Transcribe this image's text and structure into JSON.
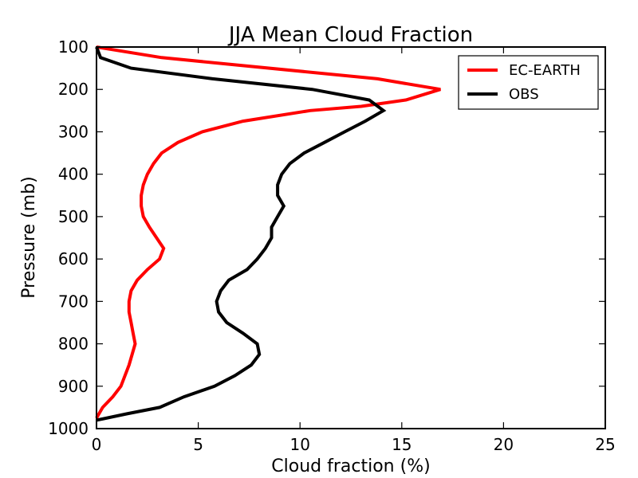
{
  "chart_data": {
    "type": "line",
    "title": "JJA Mean Cloud Fraction",
    "xlabel": "Cloud fraction (%)",
    "ylabel": "Pressure (mb)",
    "xlim": [
      0,
      25
    ],
    "ylim": [
      1000,
      100
    ],
    "y_inverted": true,
    "xticks": [
      0,
      5,
      10,
      15,
      20,
      25
    ],
    "yticks": [
      100,
      200,
      300,
      400,
      500,
      600,
      700,
      800,
      900,
      1000
    ],
    "grid": false,
    "legend_position": "top-right",
    "series": [
      {
        "name": "EC-EARTH",
        "color": "#ff0000",
        "points": [
          [
            0.0,
            100
          ],
          [
            3.2,
            125
          ],
          [
            13.8,
            175
          ],
          [
            16.9,
            200
          ],
          [
            15.2,
            225
          ],
          [
            13.0,
            240
          ],
          [
            10.5,
            250
          ],
          [
            7.2,
            275
          ],
          [
            5.2,
            300
          ],
          [
            4.0,
            325
          ],
          [
            3.2,
            350
          ],
          [
            2.8,
            375
          ],
          [
            2.5,
            400
          ],
          [
            2.3,
            425
          ],
          [
            2.2,
            450
          ],
          [
            2.2,
            475
          ],
          [
            2.3,
            500
          ],
          [
            2.6,
            525
          ],
          [
            3.3,
            575
          ],
          [
            3.1,
            600
          ],
          [
            2.5,
            625
          ],
          [
            2.0,
            650
          ],
          [
            1.7,
            675
          ],
          [
            1.6,
            700
          ],
          [
            1.6,
            725
          ],
          [
            1.7,
            750
          ],
          [
            1.8,
            775
          ],
          [
            1.9,
            800
          ],
          [
            1.6,
            850
          ],
          [
            1.2,
            900
          ],
          [
            0.8,
            925
          ],
          [
            0.3,
            950
          ],
          [
            0.0,
            975
          ]
        ]
      },
      {
        "name": "OBS",
        "color": "#000000",
        "points": [
          [
            0.0,
            100
          ],
          [
            0.2,
            125
          ],
          [
            1.7,
            150
          ],
          [
            5.7,
            175
          ],
          [
            10.6,
            200
          ],
          [
            13.4,
            225
          ],
          [
            14.1,
            250
          ],
          [
            13.2,
            275
          ],
          [
            12.2,
            300
          ],
          [
            11.2,
            325
          ],
          [
            10.2,
            350
          ],
          [
            9.5,
            375
          ],
          [
            9.1,
            400
          ],
          [
            8.9,
            425
          ],
          [
            8.9,
            450
          ],
          [
            9.2,
            475
          ],
          [
            8.9,
            500
          ],
          [
            8.6,
            525
          ],
          [
            8.6,
            550
          ],
          [
            8.3,
            575
          ],
          [
            7.9,
            600
          ],
          [
            7.4,
            625
          ],
          [
            6.5,
            650
          ],
          [
            6.1,
            675
          ],
          [
            5.9,
            700
          ],
          [
            6.0,
            725
          ],
          [
            6.4,
            750
          ],
          [
            7.2,
            775
          ],
          [
            7.9,
            800
          ],
          [
            8.0,
            825
          ],
          [
            7.6,
            850
          ],
          [
            6.8,
            875
          ],
          [
            5.8,
            900
          ],
          [
            4.3,
            925
          ],
          [
            3.1,
            950
          ],
          [
            1.5,
            965
          ],
          [
            0.0,
            980
          ]
        ]
      }
    ]
  }
}
